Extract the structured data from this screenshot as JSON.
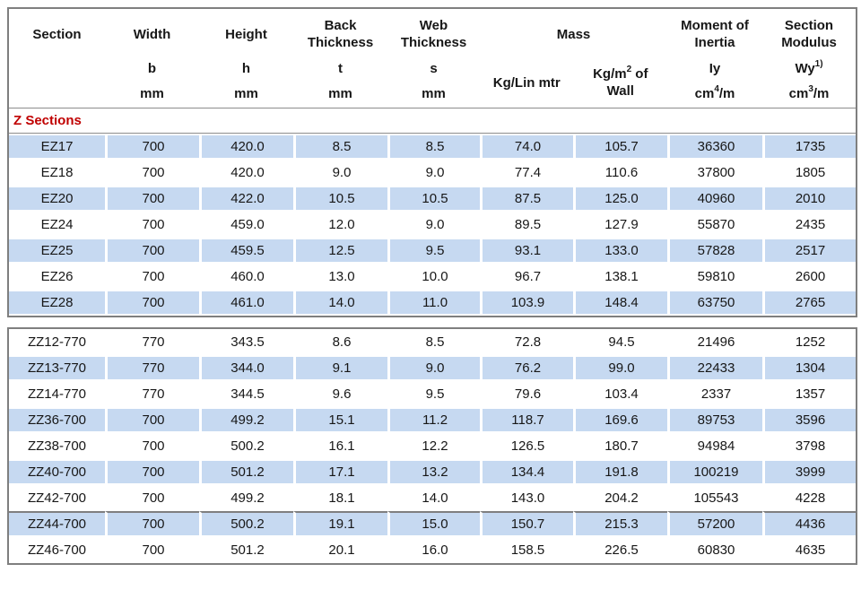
{
  "colors": {
    "shaded_row": "#c6d9f1",
    "group_label_text": "#c00000",
    "table_border": "#7f7f7f"
  },
  "table": {
    "header": {
      "section": {
        "label": "Section"
      },
      "width": {
        "label": "Width",
        "symbol": "b",
        "unit": "mm"
      },
      "height": {
        "label": "Height",
        "symbol": "h",
        "unit": "mm"
      },
      "back_thickness": {
        "label": "Back Thickness",
        "symbol": "t",
        "unit": "mm"
      },
      "web_thickness": {
        "label": "Web Thickness",
        "symbol": "s",
        "unit": "mm"
      },
      "mass": {
        "label": "Mass",
        "per_length": "Kg/Lin mtr",
        "per_area_pre": "Kg/m",
        "per_area_sup": "2",
        "per_area_post": " of",
        "per_area_line2": "Wall"
      },
      "moment_of_inertia": {
        "label": "Moment of Inertia",
        "symbol": "Iy",
        "unit_pre": "cm",
        "unit_sup": "4",
        "unit_post": "/m"
      },
      "section_modulus": {
        "label": "Section Modulus",
        "symbol_pre": "Wy",
        "symbol_sup": "1)",
        "unit_pre": "cm",
        "unit_sup": "3",
        "unit_post": "/m"
      }
    },
    "group_label": "Z Sections",
    "ez_rows": [
      {
        "shaded": true,
        "cells": [
          "EZ17",
          "700",
          "420.0",
          "8.5",
          "8.5",
          "74.0",
          "105.7",
          "36360",
          "1735"
        ]
      },
      {
        "shaded": false,
        "cells": [
          "EZ18",
          "700",
          "420.0",
          "9.0",
          "9.0",
          "77.4",
          "110.6",
          "37800",
          "1805"
        ]
      },
      {
        "shaded": true,
        "cells": [
          "EZ20",
          "700",
          "422.0",
          "10.5",
          "10.5",
          "87.5",
          "125.0",
          "40960",
          "2010"
        ]
      },
      {
        "shaded": false,
        "cells": [
          "EZ24",
          "700",
          "459.0",
          "12.0",
          "9.0",
          "89.5",
          "127.9",
          "55870",
          "2435"
        ]
      },
      {
        "shaded": true,
        "cells": [
          "EZ25",
          "700",
          "459.5",
          "12.5",
          "9.5",
          "93.1",
          "133.0",
          "57828",
          "2517"
        ]
      },
      {
        "shaded": false,
        "cells": [
          "EZ26",
          "700",
          "460.0",
          "13.0",
          "10.0",
          "96.7",
          "138.1",
          "59810",
          "2600"
        ]
      },
      {
        "shaded": true,
        "cells": [
          "EZ28",
          "700",
          "461.0",
          "14.0",
          "11.0",
          "103.9",
          "148.4",
          "63750",
          "2765"
        ]
      }
    ],
    "zz_rows": [
      {
        "shaded": false,
        "cells": [
          "ZZ12-770",
          "770",
          "343.5",
          "8.6",
          "8.5",
          "72.8",
          "94.5",
          "21496",
          "1252"
        ]
      },
      {
        "shaded": true,
        "cells": [
          "ZZ13-770",
          "770",
          "344.0",
          "9.1",
          "9.0",
          "76.2",
          "99.0",
          "22433",
          "1304"
        ]
      },
      {
        "shaded": false,
        "cells": [
          "ZZ14-770",
          "770",
          "344.5",
          "9.6",
          "9.5",
          "79.6",
          "103.4",
          "2337",
          "1357"
        ]
      },
      {
        "shaded": true,
        "cells": [
          "ZZ36-700",
          "700",
          "499.2",
          "15.1",
          "11.2",
          "118.7",
          "169.6",
          "89753",
          "3596"
        ]
      },
      {
        "shaded": false,
        "cells": [
          "ZZ38-700",
          "700",
          "500.2",
          "16.1",
          "12.2",
          "126.5",
          "180.7",
          "94984",
          "3798"
        ]
      },
      {
        "shaded": true,
        "cells": [
          "ZZ40-700",
          "700",
          "501.2",
          "17.1",
          "13.2",
          "134.4",
          "191.8",
          "100219",
          "3999"
        ]
      },
      {
        "shaded": false,
        "cells": [
          "ZZ42-700",
          "700",
          "499.2",
          "18.1",
          "14.0",
          "143.0",
          "204.2",
          "105543",
          "4228"
        ]
      },
      {
        "shaded": true,
        "sep_above": true,
        "cells": [
          "ZZ44-700",
          "700",
          "500.2",
          "19.1",
          "15.0",
          "150.7",
          "215.3",
          "57200",
          "4436"
        ]
      },
      {
        "shaded": false,
        "cells": [
          "ZZ46-700",
          "700",
          "501.2",
          "20.1",
          "16.0",
          "158.5",
          "226.5",
          "60830",
          "4635"
        ]
      }
    ]
  }
}
